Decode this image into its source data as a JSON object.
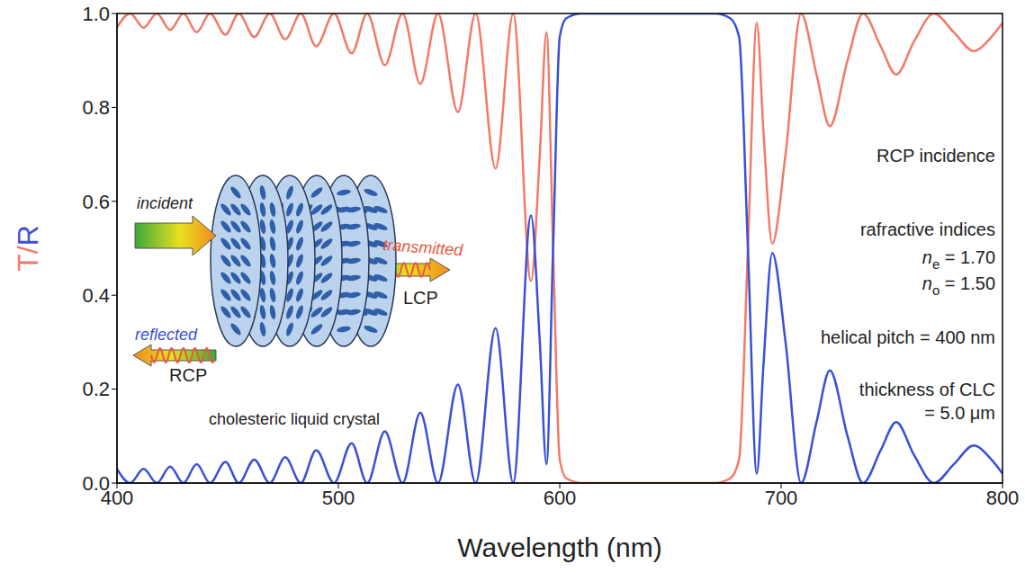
{
  "chart_data": {
    "type": "line",
    "xlabel": "Wavelength (nm)",
    "ylabel": "T/R",
    "x": [
      400,
      406,
      412,
      418,
      424,
      430,
      436,
      442,
      449,
      455,
      462,
      469,
      476,
      483,
      490,
      498,
      506,
      513,
      521,
      529,
      537,
      545,
      554,
      562,
      571,
      579,
      587,
      591,
      594,
      597,
      600,
      603,
      610,
      640,
      670,
      677,
      681,
      685,
      689,
      692,
      696,
      702,
      709,
      716,
      722,
      730,
      737,
      745,
      752,
      760,
      769,
      778,
      787,
      795,
      800
    ],
    "series": [
      {
        "name": "T",
        "color": "#f27a68",
        "values": [
          0.97,
          1.0,
          0.97,
          1.0,
          0.965,
          1.0,
          0.96,
          1.0,
          0.955,
          1.0,
          0.95,
          1.0,
          0.945,
          1.0,
          0.93,
          1.0,
          0.915,
          1.0,
          0.89,
          1.0,
          0.85,
          1.0,
          0.79,
          1.0,
          0.67,
          1.0,
          0.43,
          0.7,
          0.96,
          0.5,
          0.05,
          0.01,
          0,
          0,
          0,
          0.01,
          0.05,
          0.5,
          0.98,
          0.75,
          0.51,
          0.7,
          1.0,
          0.87,
          0.76,
          0.9,
          1.0,
          0.93,
          0.87,
          0.94,
          1.0,
          0.96,
          0.92,
          0.95,
          0.98
        ]
      },
      {
        "name": "R",
        "color": "#3a50d6",
        "values": [
          0.03,
          0,
          0.03,
          0,
          0.035,
          0,
          0.04,
          0,
          0.045,
          0,
          0.05,
          0,
          0.055,
          0,
          0.07,
          0,
          0.085,
          0,
          0.11,
          0,
          0.15,
          0,
          0.21,
          0,
          0.33,
          0,
          0.57,
          0.3,
          0.04,
          0.5,
          0.95,
          0.99,
          1.0,
          1.0,
          1.0,
          0.99,
          0.95,
          0.5,
          0.02,
          0.25,
          0.49,
          0.3,
          0,
          0.13,
          0.24,
          0.1,
          0,
          0.07,
          0.13,
          0.06,
          0,
          0.04,
          0.08,
          0.05,
          0.02
        ]
      }
    ],
    "xlim": [
      400,
      800
    ],
    "xticks": [
      400,
      500,
      600,
      700,
      800
    ],
    "ylim": [
      0,
      1
    ],
    "yticks": [
      {
        "value": 0,
        "label": "0.0"
      },
      0.2,
      0.4,
      0.6,
      0.8,
      {
        "value": 1,
        "label": "1.0"
      }
    ],
    "grid": false,
    "annotations": [
      {
        "text": "RCP incidence"
      },
      {
        "text": "rafractive indices"
      },
      {
        "text": "n",
        "subscript": "e",
        "suffix": " = 1.70"
      },
      {
        "text": "n",
        "subscript": "o",
        "suffix": " = 1.50"
      },
      {
        "text": "helical pitch = 400 nm"
      },
      {
        "text": "thickness of CLC"
      },
      {
        "text": "= 5.0 μm"
      }
    ],
    "inset": {
      "incident": "incident",
      "reflected": "reflected",
      "reflected_polarization": "RCP",
      "transmitted": "transmitted",
      "transmitted_polarization": "LCP",
      "caption": "cholesteric liquid crystal"
    }
  }
}
